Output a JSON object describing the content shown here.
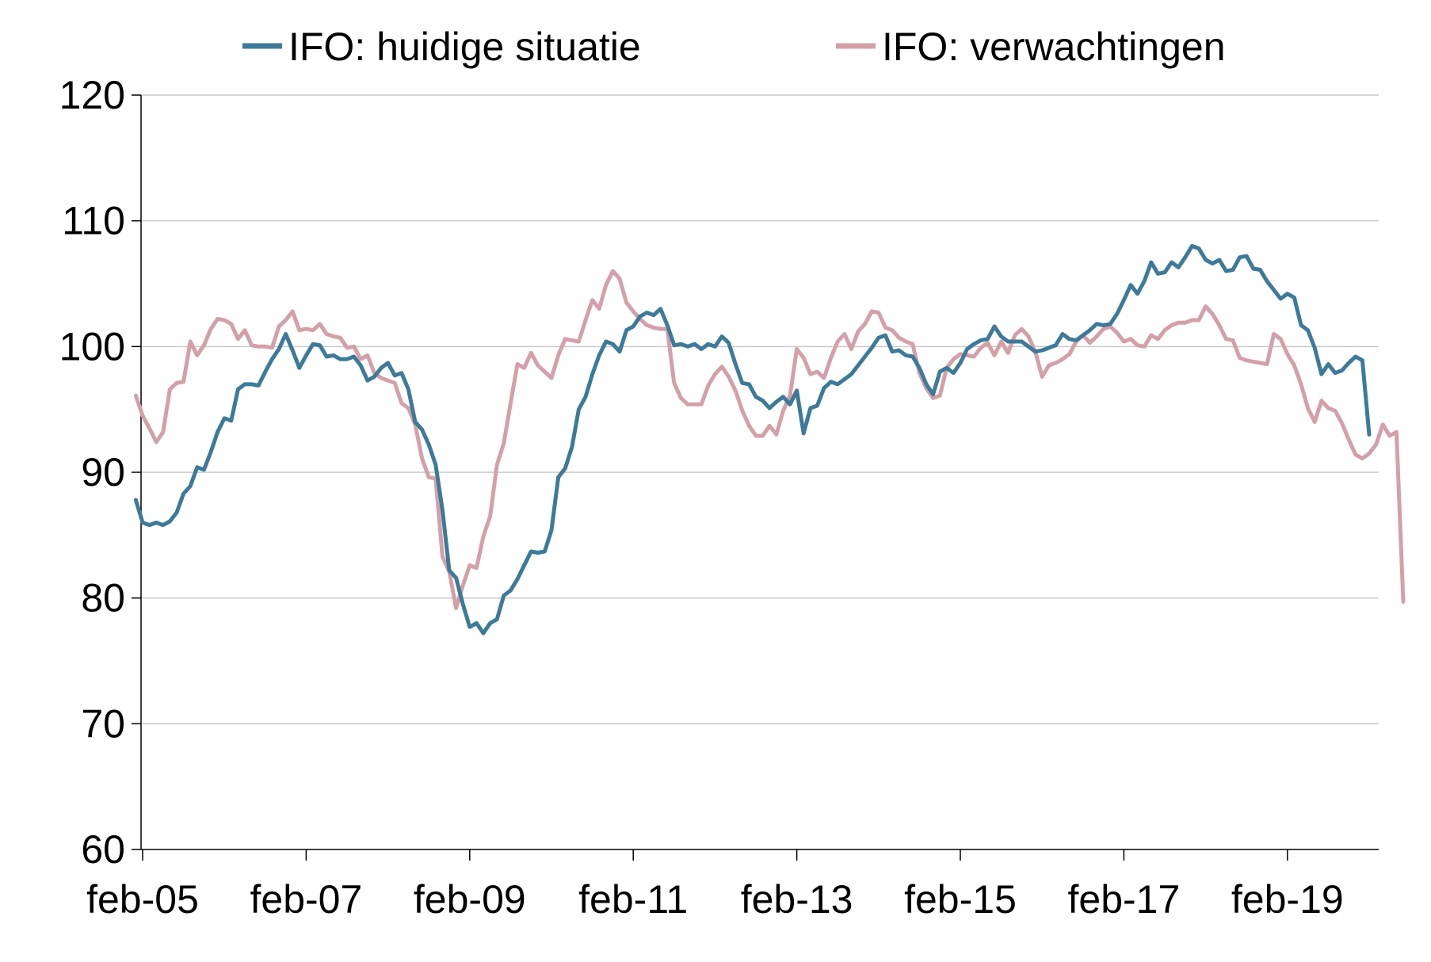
{
  "chart_data": {
    "type": "line",
    "title": "",
    "xlabel": "",
    "ylabel": "",
    "x_tick_labels": [
      "feb-05",
      "feb-07",
      "feb-09",
      "feb-11",
      "feb-13",
      "feb-15",
      "feb-17",
      "feb-19"
    ],
    "x_start": "2005-01",
    "y_ticks": [
      "60",
      "70",
      "80",
      "90",
      "100",
      "110",
      "120"
    ],
    "ylim": [
      60,
      120
    ],
    "grid": "horizontal",
    "legend_position": "top",
    "series": [
      {
        "name": "IFO: huidige situatie",
        "color": "#3D7A99",
        "values": [
          87.8,
          86.0,
          85.8,
          86.0,
          85.8,
          86.1,
          86.8,
          88.3,
          88.9,
          90.4,
          90.2,
          91.6,
          93.2,
          94.3,
          94.1,
          96.6,
          97.0,
          97.0,
          96.9,
          98.0,
          99.0,
          99.8,
          101.0,
          99.7,
          98.3,
          99.3,
          100.2,
          100.1,
          99.2,
          99.3,
          99.0,
          99.0,
          99.2,
          98.5,
          97.3,
          97.6,
          98.3,
          98.7,
          97.7,
          97.9,
          96.6,
          94.0,
          93.4,
          92.2,
          90.6,
          87.0,
          82.2,
          81.6,
          79.5,
          77.7,
          78.0,
          77.2,
          78.0,
          78.3,
          80.2,
          80.6,
          81.5,
          82.6,
          83.7,
          83.6,
          83.7,
          85.4,
          89.6,
          90.3,
          92.0,
          95.0,
          96.0,
          97.8,
          99.3,
          100.4,
          100.2,
          99.6,
          101.3,
          101.6,
          102.4,
          102.7,
          102.5,
          103.0,
          101.7,
          100.1,
          100.2,
          100.0,
          100.2,
          99.8,
          100.2,
          100.0,
          100.8,
          100.3,
          98.6,
          97.1,
          97.0,
          96.0,
          95.7,
          95.1,
          95.6,
          96.0,
          95.4,
          96.5,
          93.1,
          95.1,
          95.3,
          96.7,
          97.2,
          97.0,
          97.4,
          97.8,
          98.5,
          99.2,
          99.9,
          100.7,
          100.9,
          99.6,
          99.7,
          99.3,
          99.2,
          98.3,
          97.0,
          96.2,
          98.0,
          98.3,
          97.9,
          98.7,
          99.8,
          100.2,
          100.5,
          100.6,
          101.6,
          100.8,
          100.4,
          100.4,
          100.4,
          100.0,
          99.6,
          99.7,
          99.9,
          100.1,
          101.0,
          100.6,
          100.5,
          100.9,
          101.3,
          101.8,
          101.7,
          101.8,
          102.6,
          103.7,
          104.9,
          104.2,
          105.2,
          106.7,
          105.8,
          105.9,
          106.7,
          106.3,
          107.1,
          108.0,
          107.8,
          106.9,
          106.6,
          106.9,
          106.0,
          106.1,
          107.1,
          107.2,
          106.2,
          106.1,
          105.2,
          104.5,
          103.8,
          104.2,
          103.9,
          101.7,
          101.3,
          99.9,
          97.8,
          98.6,
          97.9,
          98.1,
          98.7,
          99.2,
          98.9,
          93.0
        ]
      },
      {
        "name": "IFO: verwachtingen",
        "color": "#D4A0A8",
        "values": [
          96.1,
          94.5,
          93.5,
          92.4,
          93.2,
          96.6,
          97.1,
          97.2,
          100.4,
          99.3,
          100.1,
          101.4,
          102.2,
          102.1,
          101.8,
          100.6,
          101.3,
          100.1,
          100.0,
          100.0,
          99.9,
          101.6,
          102.1,
          102.8,
          101.3,
          101.4,
          101.3,
          101.8,
          101.0,
          100.8,
          100.7,
          99.9,
          100.0,
          99.0,
          99.3,
          97.9,
          97.5,
          97.3,
          97.1,
          95.5,
          95.1,
          93.8,
          91.1,
          89.6,
          89.5,
          83.3,
          82.1,
          79.2,
          81.0,
          82.6,
          82.4,
          84.9,
          86.5,
          90.6,
          92.3,
          95.5,
          98.6,
          98.3,
          99.5,
          98.5,
          98.0,
          97.5,
          99.3,
          100.6,
          100.5,
          100.4,
          102.1,
          103.7,
          103.0,
          104.9,
          106.0,
          105.4,
          103.5,
          102.8,
          102.2,
          101.7,
          101.5,
          101.4,
          101.4,
          97.1,
          95.9,
          95.4,
          95.4,
          95.4,
          96.9,
          97.8,
          98.4,
          97.6,
          96.5,
          94.9,
          93.7,
          92.9,
          92.9,
          93.7,
          93.0,
          94.9,
          96.1,
          99.8,
          99.1,
          97.8,
          98.0,
          97.5,
          99.1,
          100.4,
          101.0,
          99.8,
          101.2,
          101.8,
          102.8,
          102.7,
          101.5,
          101.3,
          100.7,
          100.4,
          100.2,
          97.9,
          96.7,
          95.9,
          96.1,
          98.3,
          99.0,
          99.4,
          99.3,
          99.2,
          99.9,
          100.3,
          99.3,
          100.4,
          99.5,
          100.9,
          101.4,
          100.8,
          99.6,
          97.6,
          98.5,
          98.7,
          99.0,
          99.4,
          100.4,
          100.9,
          100.3,
          100.8,
          101.4,
          101.6,
          101.1,
          100.4,
          100.6,
          100.1,
          100.0,
          100.9,
          100.6,
          101.3,
          101.7,
          101.9,
          101.9,
          102.1,
          102.1,
          103.2,
          102.6,
          101.7,
          100.6,
          100.5,
          99.1,
          98.9,
          98.8,
          98.7,
          98.6,
          101.0,
          100.6,
          99.4,
          98.5,
          97.0,
          95.1,
          94.0,
          95.7,
          95.1,
          94.9,
          93.9,
          92.6,
          91.4,
          91.1,
          91.5,
          92.2,
          93.8,
          92.9,
          93.2,
          79.7
        ]
      }
    ]
  }
}
